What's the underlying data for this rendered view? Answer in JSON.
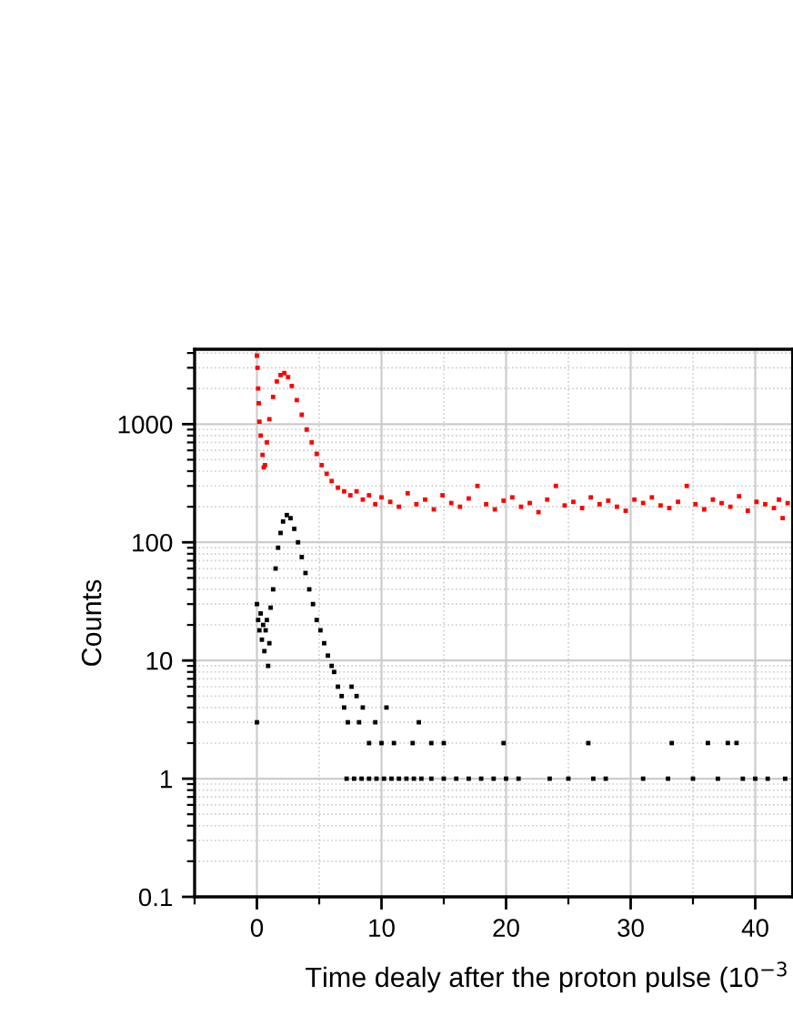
{
  "chart_data": {
    "type": "scatter",
    "xlabel": "Time dealy after the proton pulse (10$^{−3}$",
    "ylabel": "Counts",
    "log": "y",
    "xlim": [
      -5,
      43
    ],
    "xticks": [
      0,
      10,
      20,
      30,
      40
    ],
    "ylim": [
      0.1,
      4300
    ],
    "yticks": [
      0.1,
      1,
      10,
      100,
      1000
    ],
    "grid": true,
    "marker": "square",
    "series": [
      {
        "color": "#000000",
        "x": [
          0,
          0,
          0.1,
          0.2,
          0.3,
          0.4,
          0.5,
          0.6,
          0.7,
          0.8,
          0.9,
          1.0,
          1.1,
          1.3,
          1.5,
          1.7,
          1.9,
          2.1,
          2.4,
          2.7,
          3.0,
          3.3,
          3.6,
          3.9,
          4.2,
          4.5,
          4.8,
          5.1,
          5.4,
          5.7,
          6.0,
          6.2,
          6.5,
          6.8,
          7.0,
          7.3,
          7.6,
          8.0,
          8.2,
          8.5,
          9.0,
          9.5,
          10.0,
          10.4,
          11.0,
          12.5,
          13.0,
          14.0,
          15.0,
          7.2,
          7.8,
          8.4,
          9.0,
          9.6,
          10.2,
          10.8,
          11.4,
          12.0,
          12.6,
          13.2,
          14.0,
          15.0,
          16.0,
          17.0,
          18.0,
          19.0,
          19.8,
          20.0,
          21.0,
          23.5,
          25.0,
          26.6,
          27.0,
          28.0,
          31.0,
          33.0,
          33.3,
          35.0,
          36.2,
          37.0,
          37.8,
          38.5,
          39.0,
          40.0,
          41.0,
          42.4
        ],
        "values": [
          30,
          3,
          22,
          18,
          25,
          15,
          20,
          12,
          18,
          22,
          9,
          14,
          28,
          40,
          60,
          90,
          120,
          150,
          170,
          160,
          130,
          100,
          75,
          55,
          40,
          30,
          22,
          18,
          14,
          11,
          9,
          8,
          6,
          5,
          4,
          3,
          6,
          5,
          3,
          4,
          2,
          3,
          2,
          4,
          2,
          2,
          3,
          2,
          2,
          1,
          1,
          1,
          1,
          1,
          1,
          1,
          1,
          1,
          1,
          1,
          1,
          1,
          1,
          1,
          1,
          1,
          2,
          1,
          1,
          1,
          1,
          2,
          1,
          1,
          1,
          1,
          2,
          1,
          2,
          1,
          2,
          2,
          1,
          1,
          1,
          1
        ]
      },
      {
        "color": "#ff0000",
        "x": [
          0,
          0.05,
          0.1,
          0.15,
          0.2,
          0.3,
          0.45,
          0.55,
          0.65,
          0.8,
          1.0,
          1.3,
          1.6,
          1.9,
          2.2,
          2.5,
          2.8,
          3.2,
          3.6,
          4.0,
          4.4,
          4.8,
          5.2,
          5.6,
          6.0,
          6.5,
          7.0,
          7.5,
          8.0,
          8.5,
          9.0,
          9.5,
          10.0,
          10.7,
          11.4,
          12.1,
          12.8,
          13.5,
          14.2,
          14.9,
          15.6,
          16.3,
          17.0,
          17.7,
          18.4,
          19.1,
          19.8,
          20.5,
          21.2,
          21.9,
          22.6,
          23.3,
          24.0,
          24.7,
          25.4,
          26.1,
          26.8,
          27.5,
          28.2,
          28.9,
          29.6,
          30.3,
          31.0,
          31.7,
          32.4,
          33.1,
          33.8,
          34.5,
          35.2,
          35.9,
          36.6,
          37.3,
          38.0,
          38.7,
          39.4,
          40.1,
          40.8,
          41.5,
          41.9,
          42.2,
          42.6
        ],
        "values": [
          3800,
          3000,
          2000,
          1500,
          1050,
          800,
          550,
          430,
          450,
          700,
          1100,
          1700,
          2300,
          2600,
          2700,
          2500,
          2100,
          1600,
          1200,
          900,
          700,
          560,
          450,
          380,
          330,
          290,
          270,
          250,
          270,
          230,
          250,
          210,
          240,
          220,
          200,
          260,
          210,
          230,
          190,
          250,
          215,
          200,
          235,
          300,
          210,
          190,
          225,
          240,
          200,
          215,
          180,
          230,
          300,
          205,
          220,
          195,
          240,
          210,
          225,
          200,
          185,
          230,
          215,
          240,
          205,
          195,
          220,
          300,
          210,
          190,
          230,
          215,
          200,
          245,
          185,
          220,
          210,
          195,
          230,
          160,
          215
        ]
      }
    ]
  }
}
